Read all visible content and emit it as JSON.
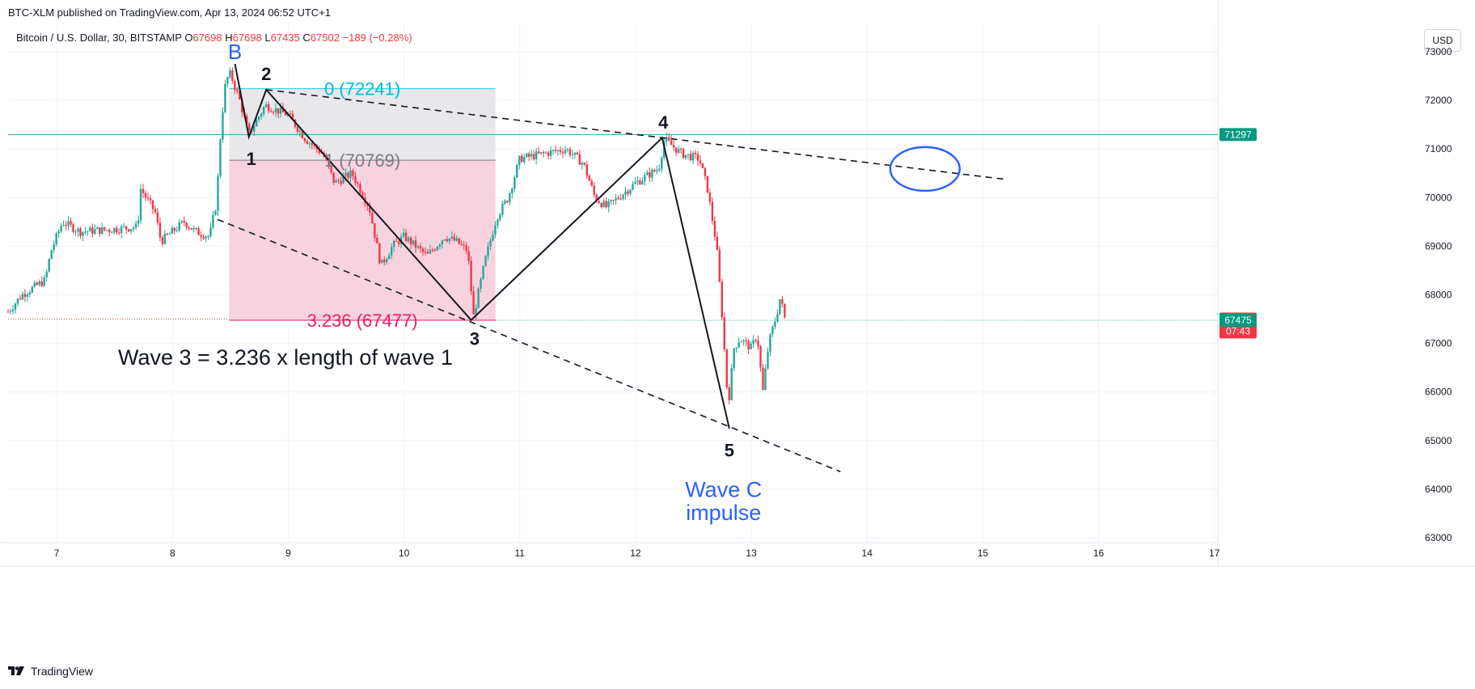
{
  "header": {
    "publish_line": "BTC-XLM published on TradingView.com, Apr 13, 2024 06:52 UTC+1",
    "symbol_desc": "Bitcoin / U.S. Dollar, 30, BITSTAMP",
    "ohlc": [
      {
        "label": "O",
        "value": "67698"
      },
      {
        "label": "H",
        "value": "67698"
      },
      {
        "label": "L",
        "value": "67435"
      },
      {
        "label": "C",
        "value": "67502"
      }
    ],
    "change": "−189 (−0.28%)",
    "currency_button": "USD"
  },
  "footer": {
    "brand": "TradingView"
  },
  "colors": {
    "up": "#26a69a",
    "down": "#f23645",
    "teal_line": "#089981",
    "fib_gray": "#e8e8eb",
    "fib_pink": "#f8d3df",
    "blue": "#2962ff",
    "fib_cyan": "#00bcd4",
    "fib_pink_text": "#e91e63"
  },
  "chart_data": {
    "type": "candlestick",
    "timeframe": "30",
    "y_ticks": [
      63000,
      64000,
      65000,
      66000,
      67000,
      68000,
      69000,
      70000,
      71000,
      72000,
      73000
    ],
    "y_tick_labels": [
      "63000",
      "64000",
      "65000",
      "66000",
      "67000",
      "68000",
      "69000",
      "70000",
      "71000",
      "72000",
      "73000"
    ],
    "ylim": [
      62900,
      73600
    ],
    "x_ticks": [
      7,
      8,
      9,
      10,
      11,
      12,
      13,
      14,
      15,
      16,
      17
    ],
    "x_tick_labels": [
      "7",
      "8",
      "9",
      "10",
      "11",
      "12",
      "13",
      "14",
      "15",
      "16",
      "17"
    ],
    "xlim": [
      6.58,
      17.03
    ],
    "price_path": [
      [
        6.58,
        67650
      ],
      [
        6.7,
        68000
      ],
      [
        6.9,
        68300
      ],
      [
        6.95,
        68900
      ],
      [
        7.05,
        69500
      ],
      [
        7.2,
        69300
      ],
      [
        7.5,
        69350
      ],
      [
        7.7,
        69400
      ],
      [
        7.72,
        70200
      ],
      [
        7.85,
        69700
      ],
      [
        7.9,
        69100
      ],
      [
        8.1,
        69500
      ],
      [
        8.2,
        69300
      ],
      [
        8.32,
        69200
      ],
      [
        8.38,
        69900
      ],
      [
        8.42,
        71500
      ],
      [
        8.46,
        72400
      ],
      [
        8.5,
        72550
      ],
      [
        8.58,
        72000
      ],
      [
        8.66,
        71300
      ],
      [
        8.8,
        71900
      ],
      [
        9.0,
        71700
      ],
      [
        9.15,
        71200
      ],
      [
        9.3,
        70900
      ],
      [
        9.4,
        70300
      ],
      [
        9.55,
        70500
      ],
      [
        9.7,
        69800
      ],
      [
        9.8,
        68600
      ],
      [
        9.9,
        69000
      ],
      [
        10.0,
        69200
      ],
      [
        10.2,
        68800
      ],
      [
        10.35,
        69200
      ],
      [
        10.45,
        69100
      ],
      [
        10.55,
        68900
      ],
      [
        10.6,
        67550
      ],
      [
        10.7,
        68700
      ],
      [
        10.8,
        69600
      ],
      [
        10.9,
        70000
      ],
      [
        11.0,
        70800
      ],
      [
        11.2,
        70900
      ],
      [
        11.4,
        71000
      ],
      [
        11.55,
        70700
      ],
      [
        11.65,
        70000
      ],
      [
        11.75,
        69800
      ],
      [
        11.9,
        70100
      ],
      [
        12.0,
        70300
      ],
      [
        12.2,
        70600
      ],
      [
        12.25,
        71200
      ],
      [
        12.4,
        70900
      ],
      [
        12.55,
        70800
      ],
      [
        12.62,
        70200
      ],
      [
        12.7,
        69000
      ],
      [
        12.75,
        67500
      ],
      [
        12.8,
        65700
      ],
      [
        12.85,
        66900
      ],
      [
        12.9,
        67100
      ],
      [
        13.0,
        66900
      ],
      [
        13.05,
        67200
      ],
      [
        13.1,
        66000
      ],
      [
        13.15,
        67000
      ],
      [
        13.22,
        67600
      ],
      [
        13.25,
        67950
      ],
      [
        13.29,
        67502
      ]
    ],
    "last_price": 67502,
    "price_labels": [
      {
        "value": 71297,
        "text": "71297",
        "color": "#089981"
      },
      {
        "value": 67502,
        "text": "67502",
        "sub": "07:43",
        "color": "#f23645"
      },
      {
        "value": 67475,
        "text": "67475",
        "color": "#089981"
      }
    ],
    "horizontal_lines": [
      71297,
      67475
    ],
    "fibonacci": {
      "x_start": 8.49,
      "x_end": 10.79,
      "levels": [
        {
          "ratio": "0",
          "price": 72241,
          "label": "0 (72241)"
        },
        {
          "ratio": "1",
          "price": 70769,
          "label": "1 (70769)"
        },
        {
          "ratio": "3.236",
          "price": 67477,
          "label": "3.236 (67477)"
        }
      ]
    },
    "wave_path": [
      {
        "label": "B",
        "x": 8.54,
        "y": 72750
      },
      {
        "label": "1",
        "x": 8.66,
        "y": 71250
      },
      {
        "label": "2",
        "x": 8.81,
        "y": 72220
      },
      {
        "label": "3",
        "x": 10.58,
        "y": 67480
      },
      {
        "label": "4",
        "x": 12.23,
        "y": 71230
      },
      {
        "label": "5",
        "x": 12.81,
        "y": 65250
      }
    ],
    "trendlines": [
      {
        "style": "dashed",
        "from": [
          8.81,
          72220
        ],
        "to": [
          15.18,
          70380
        ]
      },
      {
        "style": "dashed",
        "from": [
          8.39,
          69550
        ],
        "to": [
          13.77,
          64360
        ]
      }
    ],
    "annotations": [
      {
        "text": "B",
        "x": 8.54,
        "y": 73000,
        "color": "#2962ff",
        "size": 26
      },
      {
        "text": "2",
        "x": 8.81,
        "y": 72550,
        "color": "#131722",
        "size": 22,
        "weight": "bold"
      },
      {
        "text": "1",
        "x": 8.68,
        "y": 70800,
        "color": "#131722",
        "size": 22,
        "weight": "bold"
      },
      {
        "text": "3",
        "x": 10.61,
        "y": 67100,
        "color": "#131722",
        "size": 22,
        "weight": "bold"
      },
      {
        "text": "4",
        "x": 12.24,
        "y": 71550,
        "color": "#131722",
        "size": 22,
        "weight": "bold"
      },
      {
        "text": "5",
        "x": 12.81,
        "y": 64800,
        "color": "#131722",
        "size": 22,
        "weight": "bold"
      },
      {
        "text": "Wave 3 = 3.236 x length of wave 1",
        "x": 7.53,
        "y": 66720,
        "color": "#131722",
        "size": 27,
        "anchor": "start"
      },
      {
        "text": "Wave C",
        "x": 12.76,
        "y": 64000,
        "color": "#2962ff",
        "size": 27
      },
      {
        "text": "impulse",
        "x": 12.76,
        "y": 63520,
        "color": "#2962ff",
        "size": 27
      }
    ],
    "target_circle": {
      "cx": 14.5,
      "cy": 70590,
      "rx": 0.3,
      "ry": 450,
      "color": "#2962ff"
    }
  }
}
